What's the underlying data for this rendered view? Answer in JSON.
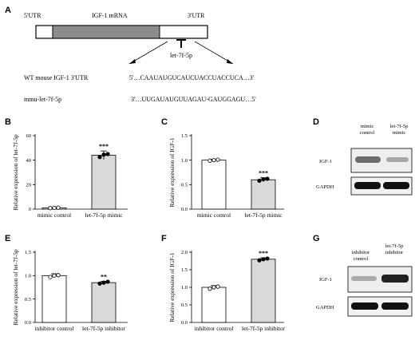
{
  "panel_labels": [
    "A",
    "B",
    "C",
    "D",
    "E",
    "F",
    "G"
  ],
  "schematic": {
    "utr5_label": "5'UTR",
    "mrna_label": "IGF-1 mRNA",
    "utr3_label": "3'UTR",
    "mirna_label": "let-7f-5p",
    "wt_label": "WT mouse IGF-1 3'UTR",
    "wt_seq": "5'…CAAUAUGUCAUCUACCUACCUCA…3'",
    "mmu_label": "mmu-let-7f-5p",
    "mmu_seq": "3'…UUGAUAUGUUAGAU-GAUGGAGU…5'"
  },
  "blots": {
    "D": {
      "lanes": [
        "mimic",
        "control",
        "let-7f-5p",
        "mimic"
      ],
      "row1": "IGF-1",
      "row2": "GAPDH"
    },
    "G": {
      "lanes": [
        "inhibitor",
        "control",
        "let-7f-5p",
        "inhibitor"
      ],
      "row1": "IGF-1",
      "row2": "GAPDH"
    }
  },
  "chart_data": [
    {
      "panel": "B",
      "type": "bar",
      "categories": [
        "mimic control",
        "let-7f-5p mimic"
      ],
      "values": [
        1,
        44
      ],
      "points": [
        [
          0.8,
          1.0,
          1.2
        ],
        [
          42.5,
          44.5,
          45.0
        ]
      ],
      "error": [
        0.3,
        3.5
      ],
      "ylabel": "Relative expression of let-7f-5p",
      "ylim": [
        0,
        60
      ],
      "yticks": [
        "0",
        "20",
        "40",
        "60"
      ],
      "colors": [
        "#ffffff",
        "#d9d9d9"
      ],
      "significance": [
        "",
        "***"
      ]
    },
    {
      "panel": "C",
      "type": "bar",
      "categories": [
        "mimic control",
        "let-7f-5p mimic"
      ],
      "values": [
        1.0,
        0.6
      ],
      "points": [
        [
          0.99,
          1.0,
          1.01
        ],
        [
          0.58,
          0.61,
          0.62
        ]
      ],
      "error": [
        0.02,
        0.04
      ],
      "ylabel": "Relative expression of IGF-1",
      "ylim": [
        0,
        1.5
      ],
      "yticks": [
        "0.0",
        "0.5",
        "1.0",
        "1.5"
      ],
      "colors": [
        "#ffffff",
        "#d9d9d9"
      ],
      "significance": [
        "",
        "***"
      ]
    },
    {
      "panel": "E",
      "type": "bar",
      "categories": [
        "inhibitor control",
        "let-7f-5p inhibitor"
      ],
      "values": [
        1.0,
        0.85
      ],
      "points": [
        [
          0.97,
          1.0,
          1.01
        ],
        [
          0.83,
          0.85,
          0.87
        ]
      ],
      "error": [
        0.04,
        0.03
      ],
      "ylabel": "Relative expression of let-7f-5p",
      "ylim": [
        0,
        1.5
      ],
      "yticks": [
        "0.0",
        "0.5",
        "1.0",
        "1.5"
      ],
      "colors": [
        "#ffffff",
        "#d9d9d9"
      ],
      "significance": [
        "",
        "**"
      ]
    },
    {
      "panel": "F",
      "type": "bar",
      "categories": [
        "inhibitor control",
        "let-7f-5p inhibitor"
      ],
      "values": [
        1.0,
        1.8
      ],
      "points": [
        [
          0.96,
          1.0,
          1.02
        ],
        [
          1.77,
          1.8,
          1.82
        ]
      ],
      "error": [
        0.05,
        0.04
      ],
      "ylabel": "Relative expression of IGF-1",
      "ylim": [
        0,
        2.0
      ],
      "yticks": [
        "0.0",
        "0.5",
        "1.0",
        "1.5",
        "2.0"
      ],
      "colors": [
        "#ffffff",
        "#d9d9d9"
      ],
      "significance": [
        "",
        "***"
      ]
    }
  ]
}
